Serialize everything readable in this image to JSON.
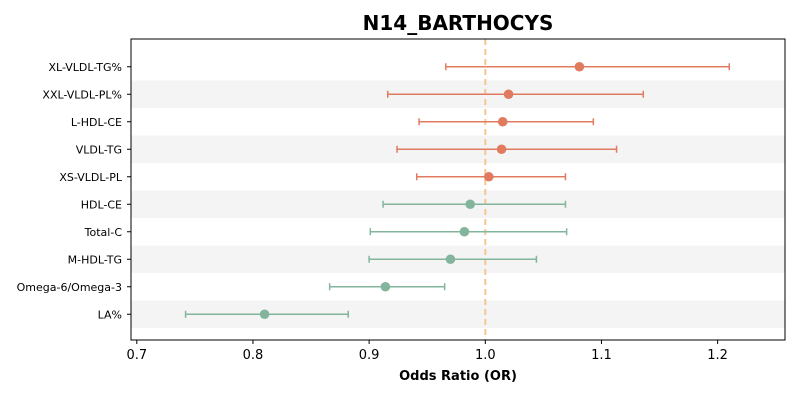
{
  "chart_data": {
    "type": "forest",
    "title": "N14_BARTHOCYS",
    "xlabel": "Odds Ratio (OR)",
    "ylabel": "",
    "xlim": [
      0.695,
      1.258
    ],
    "xticks": [
      0.7,
      0.8,
      0.9,
      1.0,
      1.1,
      1.2
    ],
    "xtick_labels": [
      "0.7",
      "0.8",
      "0.9",
      "1.0",
      "1.1",
      "1.2"
    ],
    "reference_line": 1.0,
    "grid": false,
    "alternating_row_shading": true,
    "colors": {
      "above_one": "#e07b5f",
      "below_one": "#82b59b",
      "reference_line": "#f5c78e",
      "row_shade": "#f4f4f4"
    },
    "rows": [
      {
        "label": "XL-VLDL-TG%",
        "or": 1.081,
        "ci_low": 0.966,
        "ci_high": 1.21,
        "color": "#e07b5f"
      },
      {
        "label": "XXL-VLDL-PL%",
        "or": 1.02,
        "ci_low": 0.916,
        "ci_high": 1.136,
        "color": "#e07b5f"
      },
      {
        "label": "L-HDL-CE",
        "or": 1.015,
        "ci_low": 0.943,
        "ci_high": 1.093,
        "color": "#e07b5f"
      },
      {
        "label": "VLDL-TG",
        "or": 1.014,
        "ci_low": 0.924,
        "ci_high": 1.113,
        "color": "#e07b5f"
      },
      {
        "label": "XS-VLDL-PL",
        "or": 1.003,
        "ci_low": 0.941,
        "ci_high": 1.069,
        "color": "#e07b5f"
      },
      {
        "label": "HDL-CE",
        "or": 0.987,
        "ci_low": 0.912,
        "ci_high": 1.069,
        "color": "#82b59b"
      },
      {
        "label": "Total-C",
        "or": 0.982,
        "ci_low": 0.901,
        "ci_high": 1.07,
        "color": "#82b59b"
      },
      {
        "label": "M-HDL-TG",
        "or": 0.97,
        "ci_low": 0.9,
        "ci_high": 1.044,
        "color": "#82b59b"
      },
      {
        "label": "Omega-6/Omega-3",
        "or": 0.914,
        "ci_low": 0.866,
        "ci_high": 0.965,
        "color": "#82b59b"
      },
      {
        "label": "LA%",
        "or": 0.81,
        "ci_low": 0.742,
        "ci_high": 0.882,
        "color": "#82b59b"
      }
    ]
  }
}
